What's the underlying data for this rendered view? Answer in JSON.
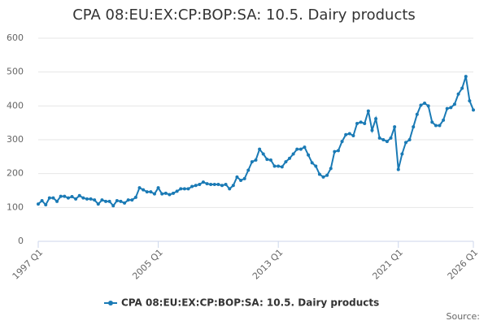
{
  "chart_data": {
    "type": "line",
    "title": "CPA 08:EU:EX:CP:BOP:SA: 10.5. Dairy products",
    "source": "Source:",
    "categories": [
      "1997 Q1",
      null,
      null,
      null,
      null,
      null,
      null,
      null,
      null,
      null,
      null,
      null,
      null,
      null,
      null,
      null,
      null,
      null,
      null,
      null,
      null,
      null,
      null,
      null,
      null,
      null,
      null,
      null,
      null,
      null,
      null,
      null,
      "2005 Q1",
      null,
      null,
      null,
      null,
      null,
      null,
      null,
      null,
      null,
      null,
      null,
      null,
      null,
      null,
      null,
      null,
      null,
      null,
      null,
      null,
      null,
      null,
      null,
      null,
      null,
      null,
      null,
      null,
      null,
      null,
      null,
      "2013 Q1",
      null,
      null,
      null,
      null,
      null,
      null,
      null,
      null,
      null,
      null,
      null,
      null,
      null,
      null,
      null,
      null,
      null,
      null,
      null,
      null,
      null,
      null,
      null,
      null,
      null,
      null,
      null,
      null,
      null,
      null,
      null,
      "2021 Q1",
      null,
      null,
      null,
      null,
      null,
      null,
      null,
      null,
      null,
      null,
      null,
      null,
      null,
      null,
      null,
      null,
      null,
      null,
      null,
      "2026 Q1"
    ],
    "series": [
      {
        "name": "CPA 08:EU:EX:CP:BOP:SA: 10.5. Dairy products",
        "color": "#1a7ab5",
        "values": [
          110,
          120,
          108,
          128,
          128,
          118,
          133,
          133,
          128,
          132,
          125,
          135,
          128,
          125,
          125,
          122,
          110,
          122,
          118,
          118,
          105,
          120,
          118,
          113,
          122,
          122,
          130,
          158,
          152,
          146,
          146,
          140,
          158,
          140,
          142,
          138,
          142,
          148,
          155,
          155,
          155,
          162,
          165,
          168,
          175,
          170,
          168,
          168,
          168,
          165,
          168,
          155,
          165,
          190,
          180,
          185,
          210,
          235,
          240,
          272,
          258,
          242,
          240,
          222,
          222,
          220,
          235,
          245,
          258,
          272,
          272,
          278,
          255,
          232,
          222,
          198,
          190,
          195,
          215,
          265,
          268,
          295,
          315,
          318,
          312,
          348,
          352,
          348,
          385,
          328,
          362,
          305,
          300,
          295,
          305,
          338,
          212,
          258,
          292,
          300,
          338,
          375,
          402,
          408,
          400,
          352,
          342,
          342,
          358,
          392,
          395,
          405,
          435,
          452,
          487,
          415,
          388
        ]
      }
    ],
    "ylim": [
      0,
      600
    ],
    "yticks": [
      0,
      100,
      200,
      300,
      400,
      500,
      600
    ],
    "grid": true,
    "legend": "bottom"
  }
}
